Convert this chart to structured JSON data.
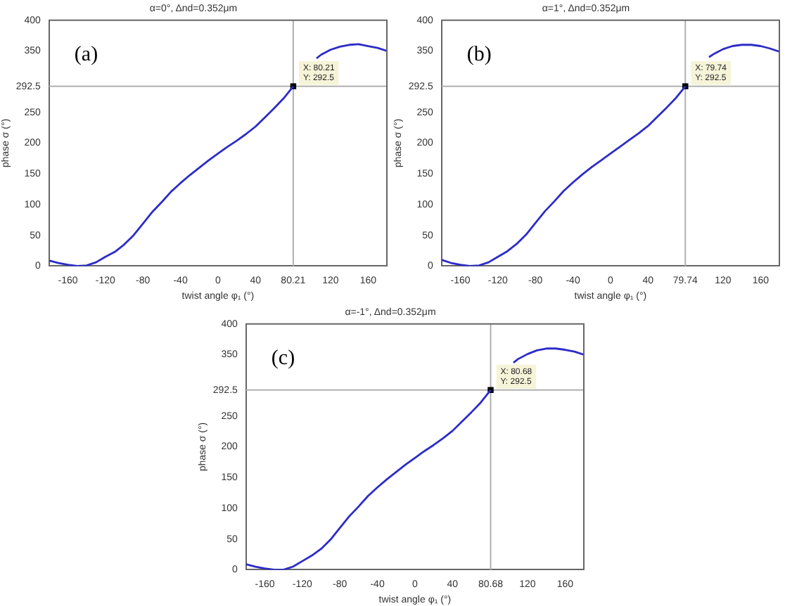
{
  "chart_data": [
    {
      "type": "line",
      "title": "α=0°, Δnd=0.352μm",
      "xlabel": "twist angle φ₁ (°)",
      "ylabel": "phase σ (°)",
      "x": [
        -180,
        -170,
        -160,
        -150,
        -140,
        -130,
        -120,
        -110,
        -100,
        -90,
        -80,
        -70,
        -60,
        -50,
        -40,
        -30,
        -20,
        -10,
        0,
        10,
        20,
        30,
        40,
        50,
        60,
        70,
        80.21,
        90,
        100,
        105,
        110,
        120,
        130,
        140,
        150,
        160,
        170,
        180
      ],
      "series": [
        {
          "color": "#2c2cc8",
          "marker": "none",
          "values": [
            9,
            5,
            2,
            0,
            1,
            6,
            15,
            23,
            35,
            50,
            69,
            88,
            104,
            121,
            135,
            148,
            160,
            172,
            183,
            194,
            204,
            215,
            227,
            242,
            257,
            273,
            292.5,
            null,
            null,
            338,
            344,
            352,
            357,
            360,
            361,
            358,
            355,
            350
          ]
        },
        {
          "type": "scatter",
          "color": "#000000",
          "marker": "square",
          "x": [
            80.21
          ],
          "values": [
            292.5
          ]
        }
      ],
      "xlim": [
        -180,
        180
      ],
      "ylim": [
        0,
        400
      ],
      "xticks": [
        -160,
        -120,
        -80,
        -40,
        0,
        40,
        80.21,
        120,
        160
      ],
      "yticks": [
        0,
        50,
        100,
        150,
        200,
        250,
        292.5,
        350,
        400
      ],
      "ref_lines": [
        {
          "axis": "x",
          "value": 80.21,
          "color": "#b0b0b0"
        },
        {
          "axis": "y",
          "value": 292.5,
          "color": "#b0b0b0"
        }
      ],
      "annotations": [
        "(a)",
        {
          "text": "X: 80.21\nY: 292.5",
          "x": 80.21,
          "y": 292.5
        }
      ],
      "grid": false,
      "legend": false
    },
    {
      "type": "line",
      "title": "α=1°, Δnd=0.352μm",
      "xlabel": "twist angle φ₁ (°)",
      "ylabel": "phase σ (°)",
      "x": [
        -180,
        -170,
        -160,
        -150,
        -140,
        -130,
        -120,
        -110,
        -100,
        -90,
        -80,
        -70,
        -60,
        -50,
        -40,
        -30,
        -20,
        -10,
        0,
        10,
        20,
        30,
        40,
        50,
        60,
        70,
        79.74,
        90,
        100,
        105,
        110,
        120,
        130,
        140,
        150,
        160,
        170,
        180
      ],
      "series": [
        {
          "color": "#2c2cc8",
          "marker": "none",
          "values": [
            10,
            5,
            2,
            0,
            1,
            6,
            15,
            24,
            36,
            51,
            70,
            89,
            105,
            122,
            136,
            149,
            161,
            172,
            183,
            194,
            205,
            216,
            228,
            243,
            258,
            274,
            292.5,
            null,
            null,
            340,
            345,
            353,
            358,
            360,
            360,
            358,
            354,
            349
          ]
        },
        {
          "type": "scatter",
          "color": "#000000",
          "marker": "square",
          "x": [
            79.74
          ],
          "values": [
            292.5
          ]
        }
      ],
      "xlim": [
        -180,
        180
      ],
      "ylim": [
        0,
        400
      ],
      "xticks": [
        -160,
        -120,
        -80,
        -40,
        0,
        40,
        79.74,
        120,
        160
      ],
      "yticks": [
        0,
        50,
        100,
        150,
        200,
        250,
        292.5,
        350,
        400
      ],
      "ref_lines": [
        {
          "axis": "x",
          "value": 79.74,
          "color": "#b0b0b0"
        },
        {
          "axis": "y",
          "value": 292.5,
          "color": "#b0b0b0"
        }
      ],
      "annotations": [
        "(b)",
        {
          "text": "X: 79.74\nY: 292.5",
          "x": 79.74,
          "y": 292.5
        }
      ],
      "grid": false,
      "legend": false
    },
    {
      "type": "line",
      "title": "α=-1°, Δnd=0.352μm",
      "xlabel": "twist angle φ₁ (°)",
      "ylabel": "phase σ (°)",
      "x": [
        -180,
        -170,
        -160,
        -150,
        -140,
        -130,
        -120,
        -110,
        -100,
        -90,
        -80,
        -70,
        -60,
        -50,
        -40,
        -30,
        -20,
        -10,
        0,
        10,
        20,
        30,
        40,
        50,
        60,
        70,
        80.68,
        90,
        100,
        105,
        110,
        120,
        130,
        140,
        150,
        160,
        170,
        180
      ],
      "series": [
        {
          "color": "#2c2cc8",
          "marker": "none",
          "values": [
            9,
            5,
            2,
            0,
            0,
            5,
            14,
            23,
            34,
            49,
            68,
            87,
            103,
            120,
            134,
            147,
            159,
            171,
            182,
            193,
            203,
            214,
            226,
            241,
            256,
            272,
            292.5,
            null,
            null,
            337,
            343,
            351,
            357,
            360,
            360,
            358,
            355,
            350
          ]
        },
        {
          "type": "scatter",
          "color": "#000000",
          "marker": "square",
          "x": [
            80.68
          ],
          "values": [
            292.5
          ]
        }
      ],
      "xlim": [
        -180,
        180
      ],
      "ylim": [
        0,
        400
      ],
      "xticks": [
        -160,
        -120,
        -80,
        -40,
        0,
        40,
        80.68,
        120,
        160
      ],
      "yticks": [
        0,
        50,
        100,
        150,
        200,
        250,
        292.5,
        350,
        400
      ],
      "ref_lines": [
        {
          "axis": "x",
          "value": 80.68,
          "color": "#b0b0b0"
        },
        {
          "axis": "y",
          "value": 292.5,
          "color": "#b0b0b0"
        }
      ],
      "annotations": [
        "(c)",
        {
          "text": "X: 80.68\nY: 292.5",
          "x": 80.68,
          "y": 292.5
        }
      ],
      "grid": false,
      "legend": false
    }
  ]
}
